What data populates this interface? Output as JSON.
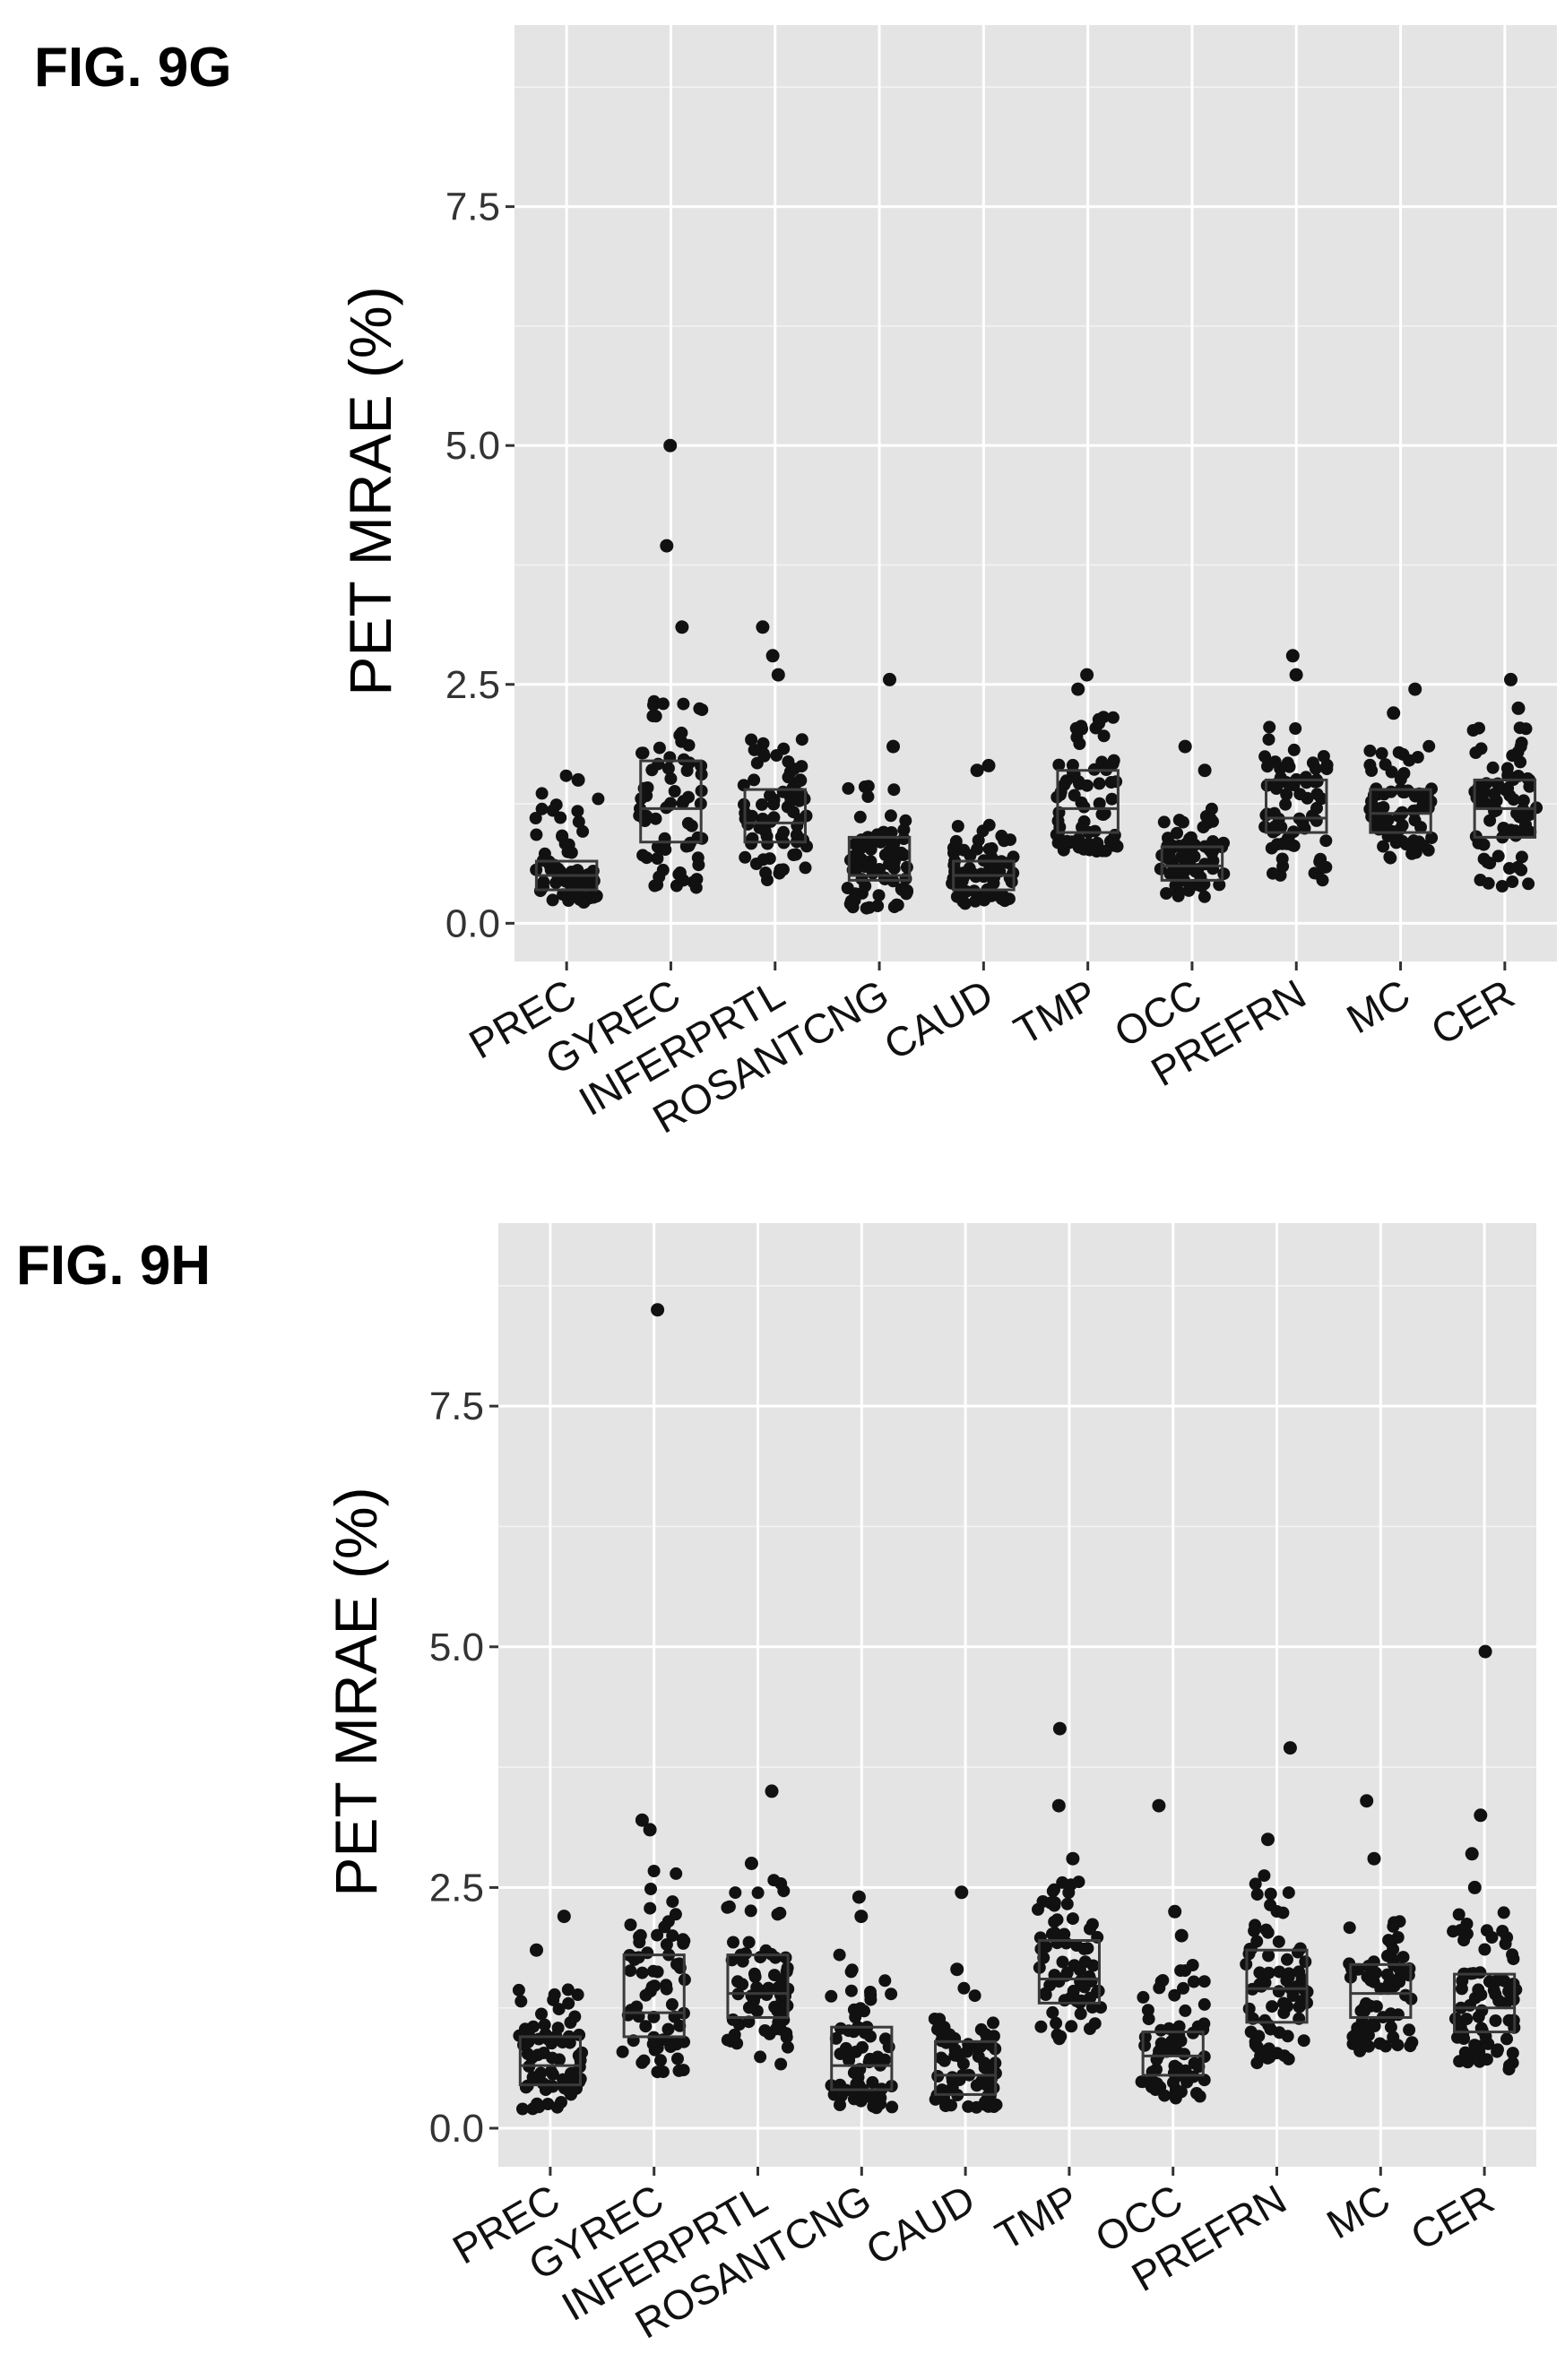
{
  "chart_data": [
    {
      "type": "boxplot",
      "title": "FIG. 9G",
      "xlabel": "",
      "ylabel": "PET MRAE (%)",
      "ylim": [
        -0.4,
        9.4
      ],
      "yticks": [
        "0.0",
        "2.5",
        "5.0",
        "7.5"
      ],
      "grid": true,
      "categories": [
        "PREC",
        "GYREC",
        "INFERPRTL",
        "ROSANTCNG",
        "CAUD",
        "TMP",
        "OCC",
        "PREFRN",
        "MC",
        "CER"
      ],
      "series": [
        {
          "q1": 0.35,
          "median": 0.5,
          "q3": 0.65,
          "min": 0.2,
          "max": 1.55,
          "outliers": [
            1.5
          ]
        },
        {
          "q1": 0.85,
          "median": 1.2,
          "q3": 1.7,
          "min": 0.35,
          "max": 2.55,
          "outliers": [
            3.1,
            3.95,
            5.0
          ]
        },
        {
          "q1": 0.85,
          "median": 1.05,
          "q3": 1.4,
          "min": 0.45,
          "max": 1.95,
          "outliers": [
            2.6,
            2.8,
            3.1
          ]
        },
        {
          "q1": 0.45,
          "median": 0.5,
          "q3": 0.9,
          "min": 0.15,
          "max": 1.5,
          "outliers": [
            1.85,
            2.55
          ]
        },
        {
          "q1": 0.35,
          "median": 0.5,
          "q3": 0.65,
          "min": 0.2,
          "max": 1.05,
          "outliers": [
            1.6,
            1.65
          ]
        },
        {
          "q1": 0.95,
          "median": 1.2,
          "q3": 1.6,
          "min": 0.75,
          "max": 2.2,
          "outliers": [
            2.45,
            2.6
          ]
        },
        {
          "q1": 0.45,
          "median": 0.6,
          "q3": 0.8,
          "min": 0.25,
          "max": 1.2,
          "outliers": [
            1.6,
            1.85
          ]
        },
        {
          "q1": 0.95,
          "median": 1.1,
          "q3": 1.5,
          "min": 0.45,
          "max": 2.1,
          "outliers": [
            2.6,
            2.8
          ]
        },
        {
          "q1": 0.95,
          "median": 1.15,
          "q3": 1.4,
          "min": 0.65,
          "max": 1.9,
          "outliers": [
            2.2,
            2.45
          ]
        },
        {
          "q1": 0.9,
          "median": 1.2,
          "q3": 1.5,
          "min": 0.35,
          "max": 2.05,
          "outliers": [
            2.25,
            2.55
          ]
        }
      ]
    },
    {
      "type": "boxplot",
      "title": "FIG. 9H",
      "xlabel": "",
      "ylabel": "PET MRAE (%)",
      "ylim": [
        -0.4,
        9.4
      ],
      "yticks": [
        "0.0",
        "2.5",
        "5.0",
        "7.5"
      ],
      "grid": true,
      "categories": [
        "PREC",
        "GYREC",
        "INFERPRTL",
        "ROSANTCNG",
        "CAUD",
        "TMP",
        "OCC",
        "PREFRN",
        "MC",
        "CER"
      ],
      "series": [
        {
          "q1": 0.45,
          "median": 0.65,
          "q3": 0.95,
          "min": 0.2,
          "max": 1.45,
          "outliers": [
            1.85,
            2.2
          ]
        },
        {
          "q1": 0.95,
          "median": 1.2,
          "q3": 1.8,
          "min": 0.55,
          "max": 2.7,
          "outliers": [
            3.1,
            3.2,
            8.5
          ]
        },
        {
          "q1": 1.15,
          "median": 1.4,
          "q3": 1.8,
          "min": 0.6,
          "max": 2.6,
          "outliers": [
            2.75,
            3.5
          ]
        },
        {
          "q1": 0.4,
          "median": 0.65,
          "q3": 1.05,
          "min": 0.2,
          "max": 1.8,
          "outliers": [
            2.2,
            2.4
          ]
        },
        {
          "q1": 0.35,
          "median": 0.55,
          "q3": 0.9,
          "min": 0.2,
          "max": 1.5,
          "outliers": [
            1.65,
            2.45
          ]
        },
        {
          "q1": 1.3,
          "median": 1.55,
          "q3": 1.95,
          "min": 0.9,
          "max": 2.6,
          "outliers": [
            2.8,
            3.35,
            4.15
          ]
        },
        {
          "q1": 0.55,
          "median": 0.75,
          "q3": 1.0,
          "min": 0.3,
          "max": 1.7,
          "outliers": [
            2.0,
            2.25,
            3.35
          ]
        },
        {
          "q1": 1.1,
          "median": 1.45,
          "q3": 1.85,
          "min": 0.55,
          "max": 2.7,
          "outliers": [
            3.0,
            3.95
          ]
        },
        {
          "q1": 1.15,
          "median": 1.4,
          "q3": 1.7,
          "min": 0.8,
          "max": 2.2,
          "outliers": [
            2.8,
            3.4
          ]
        },
        {
          "q1": 1.0,
          "median": 1.25,
          "q3": 1.6,
          "min": 0.6,
          "max": 2.3,
          "outliers": [
            2.5,
            2.85,
            3.25,
            4.95
          ]
        }
      ]
    }
  ]
}
